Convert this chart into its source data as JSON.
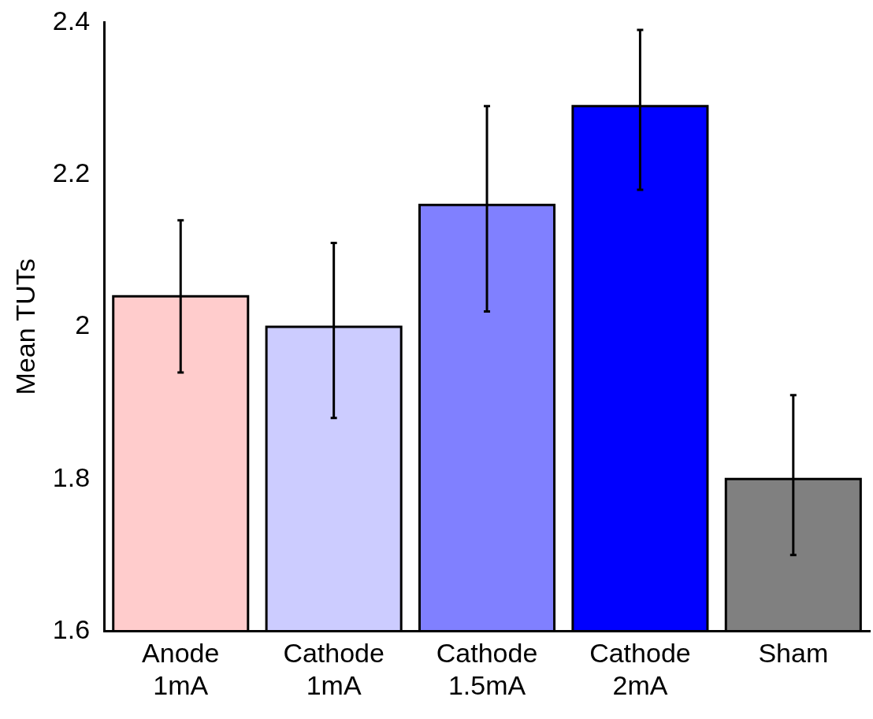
{
  "chart_data": {
    "type": "bar",
    "ylabel": "Mean TUTs",
    "categories": [
      "Anode 1mA",
      "Cathode 1mA",
      "Cathode 1.5mA",
      "Cathode 2mA",
      "Sham"
    ],
    "values": [
      2.04,
      2.0,
      2.16,
      2.29,
      1.8
    ],
    "colors": [
      "#ffcccc",
      "#ccccff",
      "#8080ff",
      "#0000ff",
      "#808080"
    ],
    "errors": [
      [
        1.94,
        2.14
      ],
      [
        1.88,
        2.11
      ],
      [
        2.02,
        2.29
      ],
      [
        2.18,
        2.39
      ],
      [
        1.7,
        1.91
      ]
    ],
    "ylim": [
      1.6,
      2.4
    ],
    "yticks": [
      1.6,
      1.8,
      2,
      2.2,
      2.4
    ],
    "grid": false,
    "legend": false
  }
}
